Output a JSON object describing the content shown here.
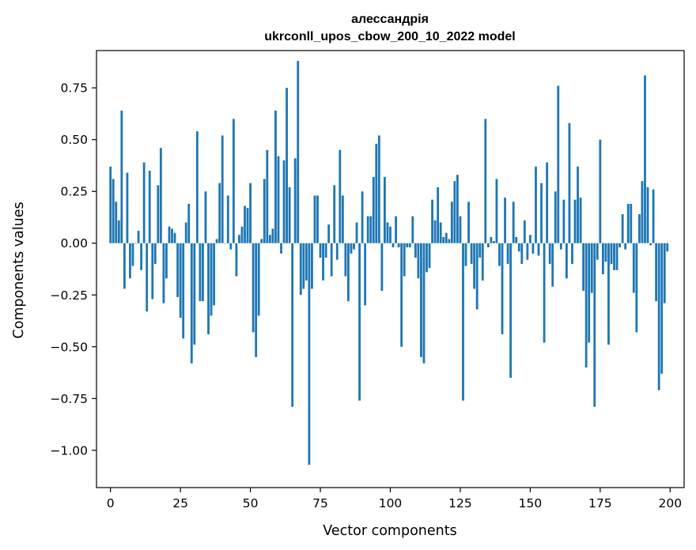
{
  "chart_data": {
    "type": "bar",
    "title_line1": "алессандрія",
    "title_line2": "ukrconll_upos_cbow_200_10_2022 model",
    "xlabel": "Vector components",
    "ylabel": "Components values",
    "xlim": [
      -5,
      205
    ],
    "ylim": [
      -1.18,
      0.93
    ],
    "xticks": [
      0,
      25,
      50,
      75,
      100,
      125,
      150,
      175,
      200
    ],
    "xtick_labels": [
      "0",
      "25",
      "50",
      "75",
      "100",
      "125",
      "150",
      "175",
      "200"
    ],
    "yticks": [
      0.75,
      0.5,
      0.25,
      0.0,
      -0.25,
      -0.5,
      -0.75,
      -1.0
    ],
    "ytick_labels": [
      "0.75",
      "0.50",
      "0.25",
      "0.00",
      "−0.25",
      "−0.50",
      "−0.75",
      "−1.00"
    ],
    "bar_color": "#1f77b4",
    "values": [
      0.37,
      0.31,
      0.2,
      0.11,
      0.64,
      -0.22,
      0.34,
      -0.17,
      -0.11,
      0.0,
      0.06,
      -0.13,
      0.39,
      -0.33,
      0.35,
      -0.27,
      -0.1,
      0.28,
      0.46,
      -0.29,
      -0.17,
      0.08,
      0.07,
      0.05,
      -0.26,
      -0.36,
      -0.46,
      0.1,
      0.19,
      -0.58,
      -0.49,
      0.54,
      -0.28,
      -0.28,
      0.25,
      -0.44,
      -0.35,
      -0.3,
      0.02,
      0.29,
      0.52,
      0.0,
      0.23,
      -0.03,
      0.6,
      -0.16,
      0.04,
      0.08,
      0.18,
      0.17,
      0.29,
      -0.43,
      -0.55,
      -0.35,
      0.02,
      0.31,
      0.45,
      0.04,
      0.07,
      0.64,
      0.42,
      -0.05,
      0.4,
      0.75,
      0.27,
      -0.79,
      0.41,
      0.88,
      -0.25,
      -0.22,
      -0.18,
      -1.07,
      -0.22,
      0.23,
      0.23,
      -0.07,
      -0.18,
      -0.07,
      0.09,
      -0.16,
      0.28,
      -0.08,
      0.45,
      0.23,
      -0.16,
      -0.28,
      -0.05,
      -0.03,
      0.1,
      -0.76,
      0.25,
      -0.3,
      0.13,
      0.13,
      0.32,
      0.48,
      0.52,
      -0.23,
      0.32,
      0.1,
      0.08,
      -0.02,
      0.13,
      -0.02,
      -0.5,
      -0.16,
      -0.02,
      -0.02,
      0.13,
      -0.07,
      -0.17,
      -0.55,
      -0.58,
      -0.14,
      -0.12,
      0.21,
      0.11,
      0.27,
      0.1,
      0.03,
      0.05,
      0.02,
      0.2,
      0.3,
      0.33,
      0.13,
      -0.76,
      -0.11,
      0.2,
      -0.1,
      -0.22,
      -0.32,
      -0.07,
      -0.18,
      0.6,
      -0.02,
      0.03,
      0.01,
      0.31,
      -0.11,
      -0.44,
      0.22,
      -0.1,
      -0.65,
      0.2,
      0.03,
      -0.04,
      -0.1,
      0.11,
      -0.08,
      0.04,
      -0.05,
      0.37,
      -0.06,
      0.29,
      -0.48,
      0.39,
      -0.1,
      -0.21,
      0.25,
      0.76,
      -0.03,
      0.21,
      -0.17,
      0.58,
      -0.1,
      0.21,
      0.37,
      0.22,
      -0.23,
      -0.6,
      -0.48,
      -0.24,
      -0.79,
      -0.08,
      0.5,
      -0.15,
      -0.09,
      -0.49,
      -0.1,
      -0.13,
      -0.13,
      -0.02,
      0.14,
      -0.03,
      0.19,
      0.19,
      -0.24,
      -0.43,
      0.14,
      0.3,
      0.81,
      0.27,
      -0.01,
      0.26,
      -0.28,
      -0.71,
      -0.63,
      -0.29,
      -0.04
    ]
  }
}
